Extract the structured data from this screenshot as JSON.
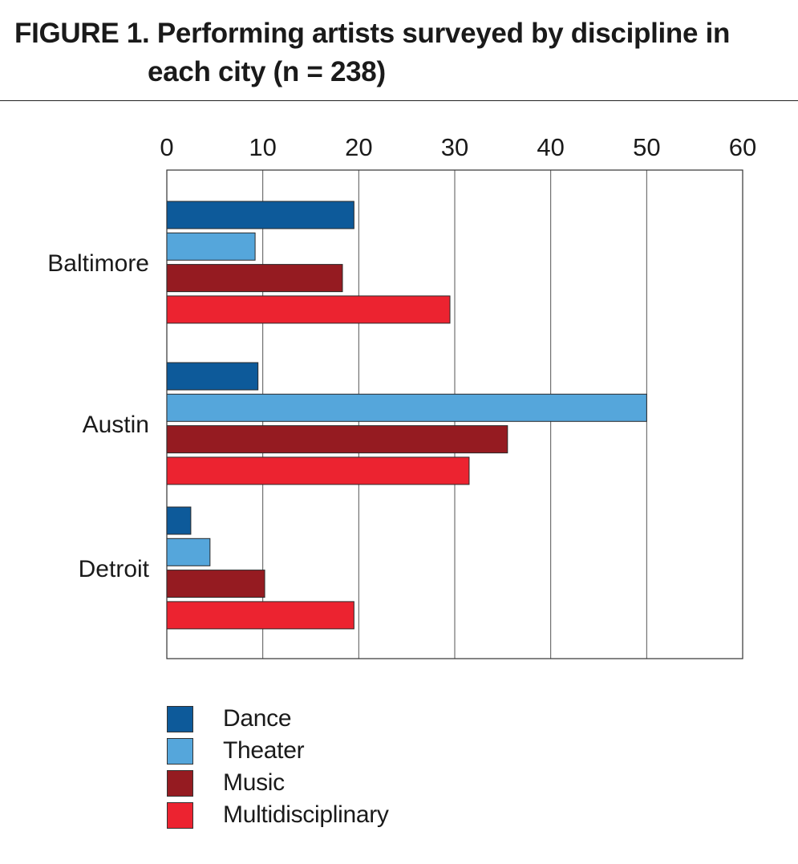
{
  "figure": {
    "title_line1": "FIGURE 1. Performing artists surveyed by discipline in",
    "title_line2": "each city (n = 238)"
  },
  "chart_data": {
    "type": "bar",
    "orientation": "horizontal",
    "title": "FIGURE 1. Performing artists surveyed by discipline in each city (n = 238)",
    "categories": [
      "Baltimore",
      "Austin",
      "Detroit"
    ],
    "series": [
      {
        "name": "Dance",
        "color": "#0d5a9a",
        "values": [
          19.5,
          9.5,
          2.5
        ]
      },
      {
        "name": "Theater",
        "color": "#55a6db",
        "values": [
          9.2,
          50,
          4.5
        ]
      },
      {
        "name": "Music",
        "color": "#951b21",
        "values": [
          18.3,
          35.5,
          10.2
        ]
      },
      {
        "name": "Multidisciplinary",
        "color": "#ec2330",
        "values": [
          29.5,
          31.5,
          19.5
        ]
      }
    ],
    "xlim": [
      0,
      60
    ],
    "xticks": [
      "0",
      "10",
      "20",
      "30",
      "40",
      "50",
      "60"
    ],
    "xaxis_position": "top",
    "xlabel": "",
    "ylabel": "",
    "grid": true,
    "legend_position": "bottom-left"
  }
}
